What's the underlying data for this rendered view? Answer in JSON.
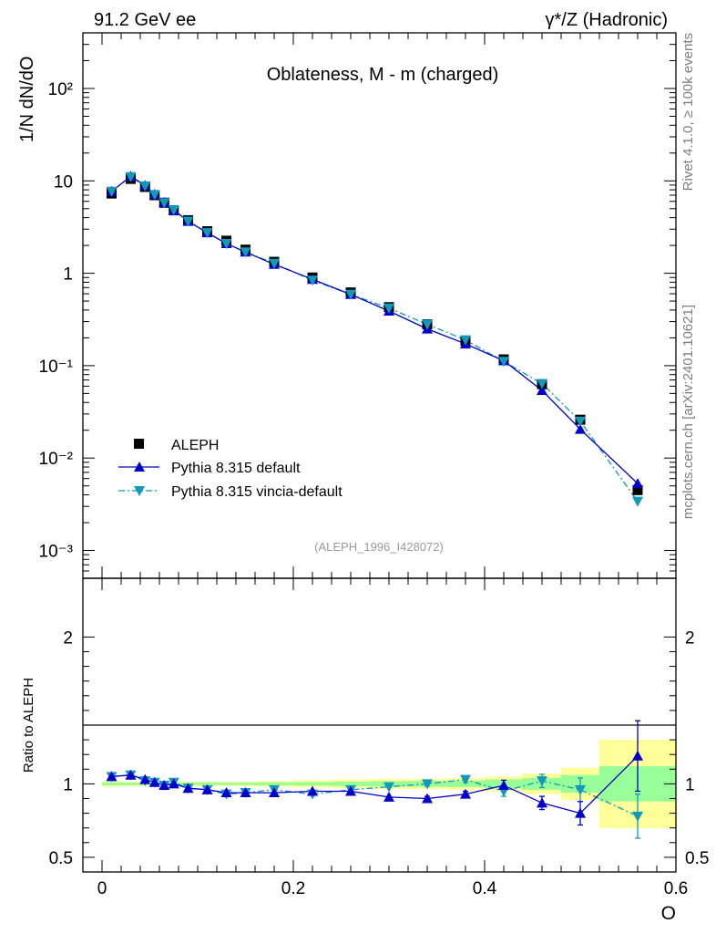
{
  "header": {
    "left": "91.2 GeV ee",
    "right": "γ*/Z (Hadronic)"
  },
  "side_labels": {
    "rivet": "Rivet 4.1.0, ≥ 100k events",
    "mcplots": "mcplots.cern.ch [arXiv:2401.10621]"
  },
  "colors": {
    "data": "#000000",
    "default": "#0000cc",
    "vincia": "#1199bb",
    "band_outer": "#ffff99",
    "band_inner": "#99ff99"
  },
  "chart_data": [
    {
      "type": "line",
      "title": "Oblateness, M - m (charged)",
      "ylabel": "1/N  dN/dO",
      "yscale": "log",
      "ylim": [
        0.0005,
        400
      ],
      "xlim": [
        -0.02,
        0.6
      ],
      "ytick_labels": [
        "10⁻³",
        "10⁻²",
        "10⁻¹",
        "1",
        "10",
        "10²"
      ],
      "watermark": "(ALEPH_1996_I428072)",
      "x": [
        0.01,
        0.03,
        0.045,
        0.055,
        0.065,
        0.075,
        0.09,
        0.11,
        0.13,
        0.15,
        0.18,
        0.22,
        0.26,
        0.3,
        0.34,
        0.38,
        0.42,
        0.46,
        0.5,
        0.56
      ],
      "legend": [
        "ALEPH",
        "Pythia 8.315 default",
        "Pythia 8.315 vincia-default"
      ],
      "series": [
        {
          "name": "ALEPH",
          "values": [
            7.3,
            10.5,
            8.6,
            7.0,
            5.8,
            4.8,
            3.75,
            2.85,
            2.25,
            1.8,
            1.33,
            0.9,
            0.62,
            0.43,
            0.28,
            0.185,
            0.117,
            0.063,
            0.026,
            0.0045
          ]
        },
        {
          "name": "Pythia 8.315 default",
          "values": [
            7.7,
            11.2,
            8.9,
            7.15,
            5.85,
            4.8,
            3.65,
            2.75,
            2.1,
            1.7,
            1.25,
            0.86,
            0.59,
            0.39,
            0.25,
            0.172,
            0.113,
            0.054,
            0.0205,
            0.0053
          ]
        },
        {
          "name": "Pythia 8.315 vincia-default",
          "values": [
            7.7,
            11.1,
            8.8,
            7.1,
            5.8,
            4.85,
            3.65,
            2.75,
            2.1,
            1.7,
            1.28,
            0.84,
            0.59,
            0.42,
            0.28,
            0.19,
            0.111,
            0.064,
            0.025,
            0.0034
          ]
        }
      ]
    },
    {
      "type": "line",
      "ylabel": "Ratio to ALEPH",
      "xlabel": "O",
      "xlim": [
        -0.02,
        0.6
      ],
      "ylim": [
        0.4,
        2.4
      ],
      "ytick_labels": [
        "0.5",
        "1",
        "2"
      ],
      "xtick_labels": [
        "0",
        "0.2",
        "0.4",
        "0.6"
      ],
      "x": [
        0.01,
        0.03,
        0.045,
        0.055,
        0.065,
        0.075,
        0.09,
        0.11,
        0.13,
        0.15,
        0.18,
        0.22,
        0.26,
        0.3,
        0.34,
        0.38,
        0.42,
        0.46,
        0.5,
        0.56
      ],
      "bins": [
        [
          0,
          0.02
        ],
        [
          0.02,
          0.04
        ],
        [
          0.04,
          0.05
        ],
        [
          0.05,
          0.06
        ],
        [
          0.06,
          0.07
        ],
        [
          0.07,
          0.08
        ],
        [
          0.08,
          0.1
        ],
        [
          0.1,
          0.12
        ],
        [
          0.12,
          0.14
        ],
        [
          0.14,
          0.16
        ],
        [
          0.16,
          0.2
        ],
        [
          0.2,
          0.24
        ],
        [
          0.24,
          0.28
        ],
        [
          0.28,
          0.32
        ],
        [
          0.32,
          0.36
        ],
        [
          0.36,
          0.4
        ],
        [
          0.4,
          0.44
        ],
        [
          0.44,
          0.48
        ],
        [
          0.48,
          0.52
        ],
        [
          0.52,
          0.6
        ]
      ],
      "band_outer": [
        0.02,
        0.015,
        0.015,
        0.015,
        0.015,
        0.015,
        0.015,
        0.015,
        0.015,
        0.015,
        0.02,
        0.025,
        0.03,
        0.035,
        0.035,
        0.04,
        0.05,
        0.07,
        0.11,
        0.3
      ],
      "band_inner": [
        0.01,
        0.008,
        0.008,
        0.008,
        0.008,
        0.008,
        0.008,
        0.008,
        0.008,
        0.008,
        0.01,
        0.012,
        0.015,
        0.018,
        0.02,
        0.022,
        0.03,
        0.04,
        0.06,
        0.12
      ],
      "series": [
        {
          "name": "Pythia 8.315 default",
          "values": [
            1.05,
            1.06,
            1.03,
            1.01,
            0.99,
            1.0,
            0.97,
            0.96,
            0.94,
            0.94,
            0.94,
            0.95,
            0.95,
            0.91,
            0.9,
            0.93,
            0.99,
            0.87,
            0.8,
            1.19
          ],
          "errors": [
            0,
            0,
            0,
            0,
            0,
            0,
            0,
            0,
            0,
            0,
            0,
            0,
            0,
            0,
            0.015,
            0.02,
            0.035,
            0.045,
            0.08,
            0.24
          ]
        },
        {
          "name": "Pythia 8.315 vincia-default",
          "values": [
            1.05,
            1.06,
            1.02,
            1.01,
            0.99,
            1.01,
            0.97,
            0.96,
            0.93,
            0.94,
            0.96,
            0.93,
            0.96,
            0.98,
            1.0,
            1.03,
            0.95,
            1.02,
            0.96,
            0.78
          ],
          "errors": [
            0,
            0,
            0,
            0,
            0,
            0,
            0,
            0,
            0,
            0,
            0,
            0,
            0,
            0,
            0.015,
            0.02,
            0.035,
            0.045,
            0.08,
            0.15
          ]
        }
      ]
    }
  ]
}
